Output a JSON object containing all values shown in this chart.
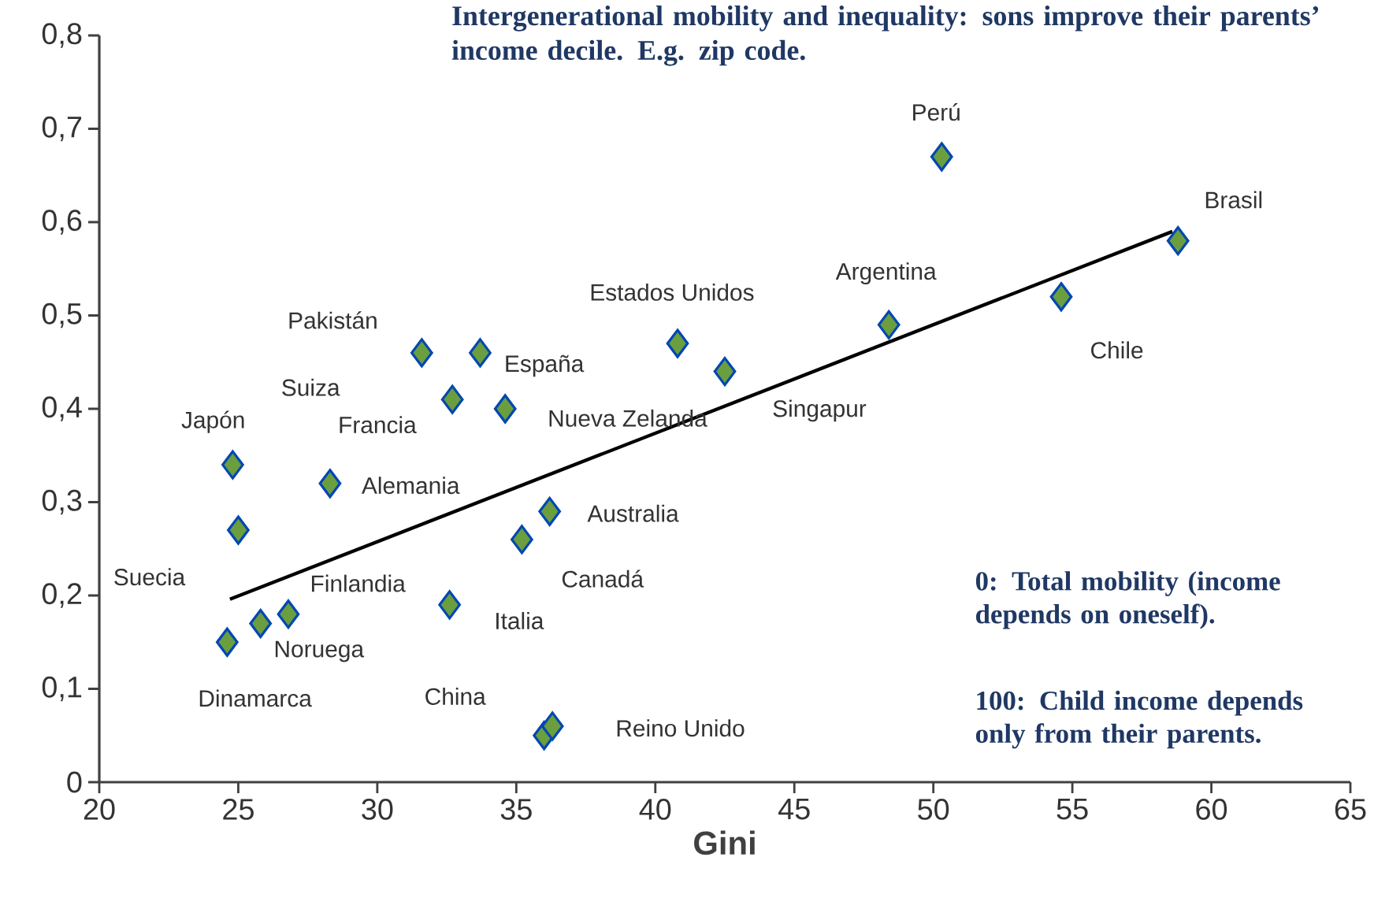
{
  "chart_data": {
    "type": "scatter",
    "title": "Intergenerational mobility and inequality: sons improve their parents’ income decile. E.g. zip code.",
    "xlabel": "Gini",
    "xlim": [
      20,
      65
    ],
    "ylim": [
      0,
      0.8
    ],
    "xticks": [
      20,
      25,
      30,
      35,
      40,
      45,
      50,
      55,
      60,
      65
    ],
    "yticks": [
      {
        "value": 0,
        "label": "0"
      },
      {
        "value": 0.1,
        "label": "0,1"
      },
      {
        "value": 0.2,
        "label": "0,2"
      },
      {
        "value": 0.3,
        "label": "0,3"
      },
      {
        "value": 0.4,
        "label": "0,4"
      },
      {
        "value": 0.5,
        "label": "0,5"
      },
      {
        "value": 0.6,
        "label": "0,6"
      },
      {
        "value": 0.7,
        "label": "0,7"
      },
      {
        "value": 0.8,
        "label": "0,8"
      }
    ],
    "series": [
      {
        "color": "#6b9e3f",
        "marker": "diamond",
        "x": [
          50.3,
          58.8,
          54.6,
          48.4,
          40.8,
          42.5,
          31.6,
          33.7,
          32.7,
          34.6,
          24.8,
          28.3,
          25.0,
          36.2,
          35.2,
          32.6,
          26.8,
          25.8,
          24.6,
          36.0,
          36.3
        ],
        "values": [
          0.67,
          0.58,
          0.52,
          0.49,
          0.47,
          0.44,
          0.46,
          0.46,
          0.41,
          0.4,
          0.34,
          0.32,
          0.27,
          0.29,
          0.26,
          0.19,
          0.18,
          0.17,
          0.15,
          0.05,
          0.06
        ]
      },
      {
        "type": "line",
        "color": "#000000",
        "line_style": "solid",
        "x": [
          24.7,
          58.6
        ],
        "values": [
          0.196,
          0.59
        ]
      }
    ],
    "annotations": [
      "Perú",
      "Brasil",
      "Chile",
      "Argentina",
      "Estados Unidos",
      "Singapur",
      "Pakistán",
      "España",
      "Suiza",
      "Francia",
      "Nueva Zelanda",
      "Japón",
      "Alemania",
      "Suecia",
      "Australia",
      "Canadá",
      "Italia",
      "Finlandia",
      "Noruega",
      "Dinamarca",
      "China",
      "Reino Unido",
      "0: Total mobility (income depends on oneself).",
      "100: Child income depends only from their parents."
    ]
  }
}
